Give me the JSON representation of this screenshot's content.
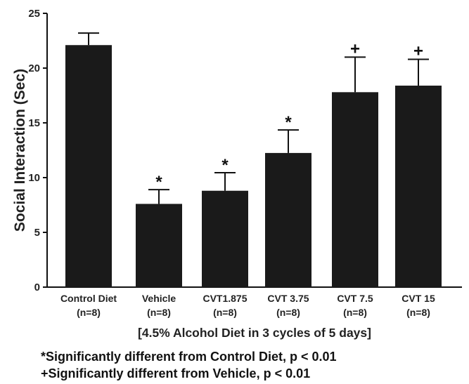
{
  "chart_data": {
    "type": "bar",
    "categories": [
      {
        "line1": "Control Diet",
        "line2": "(n=8)"
      },
      {
        "line1": "Vehicle",
        "line2": "(n=8)"
      },
      {
        "line1": "CVT1.875",
        "line2": "(n=8)"
      },
      {
        "line1": "CVT 3.75",
        "line2": "(n=8)"
      },
      {
        "line1": "CVT 7.5",
        "line2": "(n=8)"
      },
      {
        "line1": "CVT 15",
        "line2": "(n=8)"
      }
    ],
    "values": [
      22.1,
      7.6,
      8.8,
      12.25,
      17.8,
      18.4
    ],
    "errors": [
      1.1,
      1.3,
      1.65,
      2.1,
      3.2,
      2.4
    ],
    "significance": [
      "",
      "*",
      "*",
      "*",
      "+",
      "+"
    ],
    "ylabel": "Social Interaction (Sec)",
    "xlabel": "[4.5% Alcohol Diet in 3 cycles of 5 days]",
    "ylim": [
      0,
      25
    ],
    "yticks": [
      0,
      5,
      10,
      15,
      20,
      25
    ],
    "bar_color": "#1a1a1a",
    "grid": false
  },
  "footnotes": {
    "control": "*Significantly different from Control Diet, p < 0.01",
    "vehicle": "+Significantly different from Vehicle, p < 0.01"
  }
}
